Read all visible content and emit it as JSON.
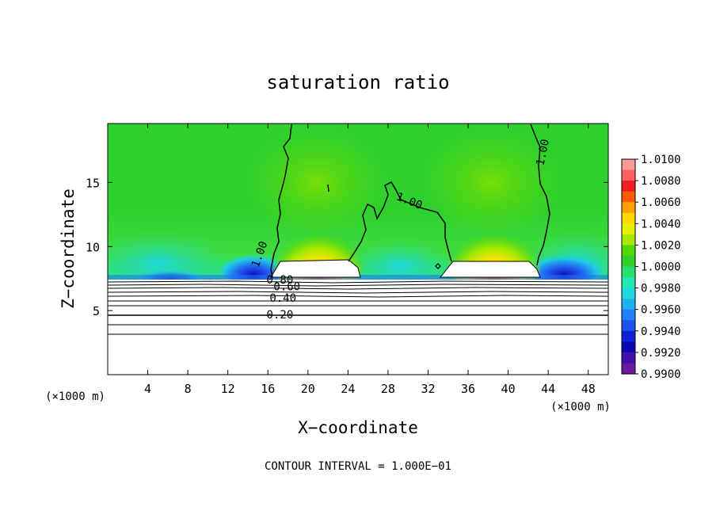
{
  "chart_data": {
    "type": "heatmap",
    "title": "saturation ratio",
    "xlabel": "X−coordinate",
    "ylabel": "Z−coordinate",
    "x_unit_label": "(×1000 m)",
    "y_unit_label": "(×1000 m)",
    "xlim": [
      0,
      50
    ],
    "ylim": [
      0,
      19.6
    ],
    "x_ticks": [
      4,
      8,
      12,
      16,
      20,
      24,
      28,
      32,
      36,
      40,
      44,
      48
    ],
    "y_ticks": [
      5,
      10,
      15
    ],
    "footer": "CONTOUR INTERVAL = 1.000E−01",
    "colorbar": {
      "labels": [
        "1.0100",
        "1.0080",
        "1.0060",
        "1.0040",
        "1.0020",
        "1.0000",
        "0.9980",
        "0.9960",
        "0.9940",
        "0.9920",
        "0.9900"
      ],
      "colors": [
        "#ff9a9a",
        "#ff6060",
        "#f01e1e",
        "#ff5a00",
        "#ffa000",
        "#ffd800",
        "#e8f000",
        "#a8e800",
        "#50d800",
        "#2ed02e",
        "#28e070",
        "#20e8b0",
        "#20d8e0",
        "#20b0f0",
        "#2080ff",
        "#1e50f0",
        "#1020d8",
        "#0808b0",
        "#4010a8",
        "#6a1aa0"
      ]
    },
    "contour_labels": [
      {
        "text": "1.00",
        "x": 15.5,
        "y": 9.3,
        "rotate": -70
      },
      {
        "text": "1.00",
        "x": 30.0,
        "y": 13.3,
        "rotate": 22
      },
      {
        "text": "1.00",
        "x": 43.8,
        "y": 17.3,
        "rotate": -78
      },
      {
        "text": "0.80",
        "x": 17.2,
        "y": 7.1,
        "rotate": 0
      },
      {
        "text": "0.60",
        "x": 17.9,
        "y": 6.6,
        "rotate": 0
      },
      {
        "text": "0.40",
        "x": 17.5,
        "y": 5.7,
        "rotate": 0
      },
      {
        "text": "0.20",
        "x": 17.2,
        "y": 4.4,
        "rotate": 0
      }
    ]
  }
}
